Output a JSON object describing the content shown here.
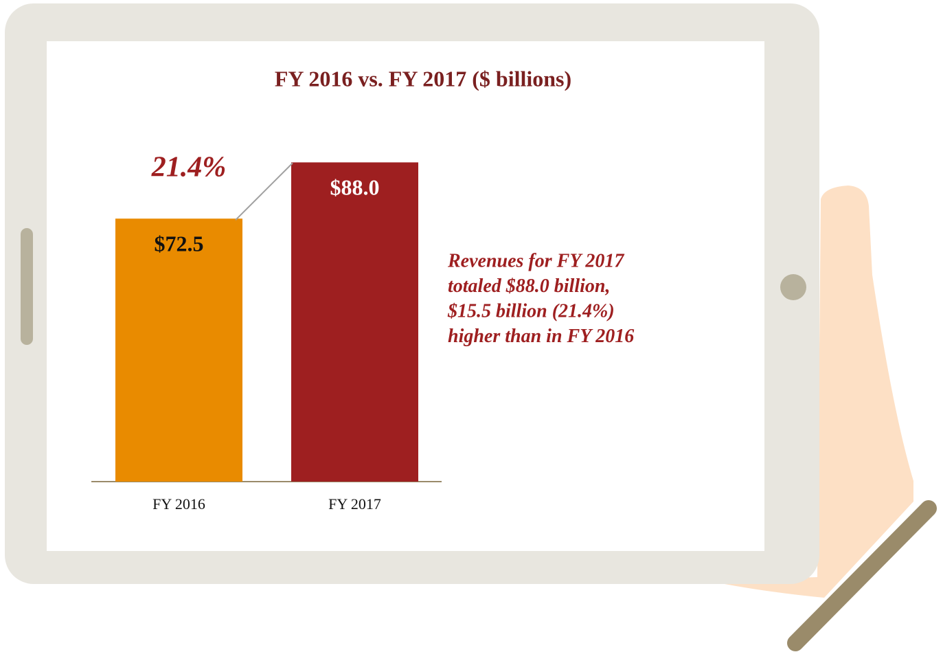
{
  "chart_data": {
    "type": "bar",
    "title": "FY 2016 vs. FY 2017 ($ billions)",
    "categories": [
      "FY 2016",
      "FY 2017"
    ],
    "values": [
      72.5,
      88.0
    ],
    "value_labels": [
      "$72.5",
      "$88.0"
    ],
    "colors": [
      "#e98b00",
      "#9e1f20"
    ],
    "value_label_colors": [
      "#111111",
      "#ffffff"
    ],
    "change_label": "21.4%",
    "annotation": [
      "Revenues for FY 2017",
      "totaled $88.0 billion,",
      "$15.5 billion (21.4%)",
      "higher than in FY 2016"
    ]
  }
}
